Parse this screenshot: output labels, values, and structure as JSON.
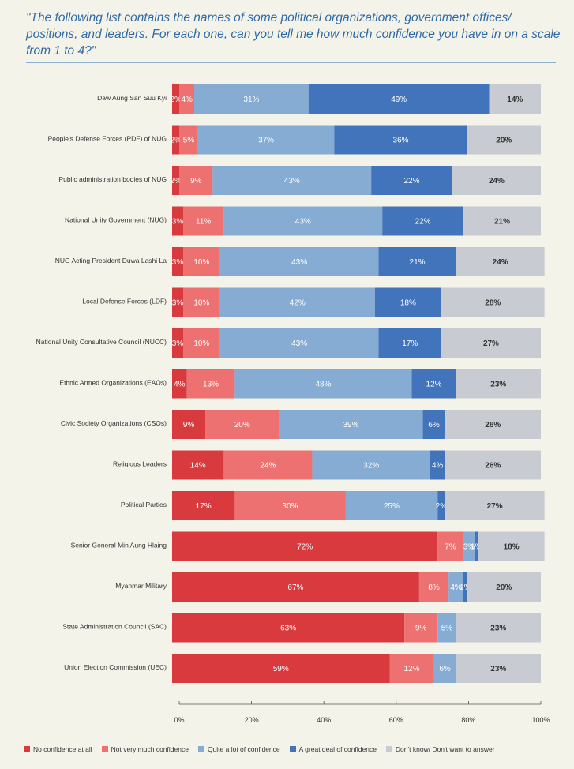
{
  "title": "\"The following list contains the names of some political organizations, government offices/ positions, and leaders. For each one, can you tell me how much confidence you have in on a scale from 1 to 4?\"",
  "colors": {
    "no_confidence": "#d83a3e",
    "not_very_much": "#ec7170",
    "quite_a_lot": "#86acd3",
    "great_deal": "#4274bb",
    "dont_know": "#c9cbd2"
  },
  "chart_data": {
    "type": "bar",
    "orientation": "horizontal",
    "stacked": true,
    "title": "",
    "xlabel": "",
    "ylabel": "",
    "xlim": [
      0,
      100
    ],
    "x_ticks": [
      "0%",
      "20%",
      "40%",
      "60%",
      "80%",
      "100%"
    ],
    "categories": [
      "Daw Aung San Suu Kyi",
      "People's Defense Forces (PDF) of NUG",
      "Public administration bodies of NUG",
      "National Unity Government (NUG)",
      "NUG Acting President Duwa Lashi La",
      "Local Defense Forces (LDF)",
      "National Unity Consultative Council (NUCC)",
      "Ethnic Armed Organizations (EAOs)",
      "Civic Society Organizations (CSOs)",
      "Religious Leaders",
      "Political Parties",
      "Senior General Min Aung Hlaing",
      "Myanmar Military",
      "State Administration Council (SAC)",
      "Union Election Commission (UEC)"
    ],
    "series": [
      {
        "name": "No confidence at all",
        "color_key": "no_confidence",
        "label_color": "#ffffff",
        "values": [
          2,
          2,
          2,
          3,
          3,
          3,
          3,
          4,
          9,
          14,
          17,
          72,
          67,
          63,
          59
        ]
      },
      {
        "name": "Not very much confidence",
        "color_key": "not_very_much",
        "label_color": "#ffffff",
        "values": [
          4,
          5,
          9,
          11,
          10,
          10,
          10,
          13,
          20,
          24,
          30,
          7,
          8,
          9,
          12
        ]
      },
      {
        "name": "Quite a lot of confidence",
        "color_key": "quite_a_lot",
        "label_color": "#ffffff",
        "values": [
          31,
          37,
          43,
          43,
          43,
          42,
          43,
          48,
          39,
          32,
          25,
          3,
          4,
          5,
          6
        ]
      },
      {
        "name": "A great deal of confidence",
        "color_key": "great_deal",
        "label_color": "#ffffff",
        "values": [
          49,
          36,
          22,
          22,
          21,
          18,
          17,
          12,
          6,
          4,
          2,
          1,
          1,
          0,
          0
        ]
      },
      {
        "name": "Don't know/ Don't want to answer",
        "color_key": "dont_know",
        "label_color": "#333333",
        "values": [
          14,
          20,
          24,
          21,
          24,
          28,
          27,
          23,
          26,
          26,
          27,
          18,
          20,
          23,
          23
        ]
      }
    ],
    "legend_position": "bottom"
  }
}
